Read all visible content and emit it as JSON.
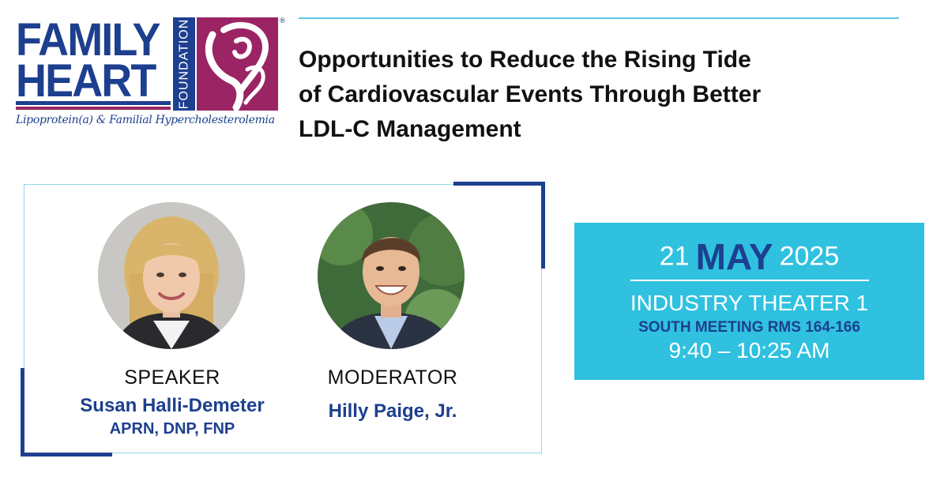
{
  "logo": {
    "line1": "FAMILY",
    "line2": "HEART",
    "foundation": "FOUNDATION",
    "registered": "®",
    "tagline": "Lipoprotein(a) & Familial Hypercholesterolemia",
    "brand_blue": "#1d3f8f",
    "brand_magenta": "#9b2465"
  },
  "title": {
    "line1": "Opportunities to Reduce the Rising Tide",
    "line2": "of Cardiovascular Events Through Better",
    "line3": "LDL-C Management"
  },
  "speaker": {
    "role": "SPEAKER",
    "name": "Susan Halli-Demeter",
    "credentials": "APRN, DNP, FNP"
  },
  "moderator": {
    "role": "MODERATOR",
    "name": "Hilly Paige, Jr."
  },
  "event": {
    "day": "21",
    "month": "MAY",
    "year": "2025",
    "venue": "INDUSTRY THEATER 1",
    "room": "SOUTH MEETING RMS 164-166",
    "time": "9:40 – 10:25 AM"
  },
  "colors": {
    "accent_cyan": "#2fc1df",
    "navy": "#1d3f8f",
    "panel_border": "#8fd8ea"
  }
}
